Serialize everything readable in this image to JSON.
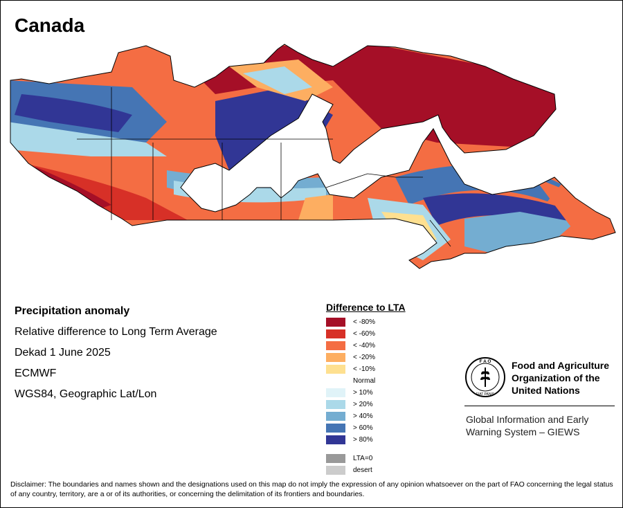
{
  "title": "Canada",
  "info": {
    "heading": "Precipitation anomaly",
    "subtitle": "Relative difference to Long Term Average",
    "period": "Dekad 1 June 2025",
    "source": "ECMWF",
    "projection": "WGS84, Geographic Lat/Lon"
  },
  "legend": {
    "title": "Difference to LTA",
    "items": [
      {
        "label": "< -80%",
        "color": "#a50f27"
      },
      {
        "label": "< -60%",
        "color": "#d73027"
      },
      {
        "label": "< -40%",
        "color": "#f46d43"
      },
      {
        "label": "< -20%",
        "color": "#fdae61"
      },
      {
        "label": "< -10%",
        "color": "#fee090"
      },
      {
        "label": "Normal",
        "color": "#ffffff"
      },
      {
        "label": "> 10%",
        "color": "#e0f3f8"
      },
      {
        "label": "> 20%",
        "color": "#abd9e9"
      },
      {
        "label": "> 40%",
        "color": "#74add1"
      },
      {
        "label": "> 60%",
        "color": "#4575b4"
      },
      {
        "label": "> 80%",
        "color": "#313695"
      }
    ],
    "extra": [
      {
        "label": "LTA=0",
        "color": "#999999"
      },
      {
        "label": "desert",
        "color": "#cccccc"
      }
    ]
  },
  "logo": {
    "org_line1": "Food and Agriculture",
    "org_line2": "Organization of the",
    "org_line3": "United Nations",
    "emblem_letters": "F A O",
    "emblem_motto": "FIAT PANIS",
    "program_line1": "Global Information and Early",
    "program_line2": "Warning System – GIEWS"
  },
  "disclaimer": "Disclaimer: The boundaries and names shown and the designations used on this map do not imply the expression of any opinion whatsoever on the part of FAO concerning the legal status of any country, territory, are a or of its authorities, or concerning the delimitation of its frontiers and boundaries."
}
